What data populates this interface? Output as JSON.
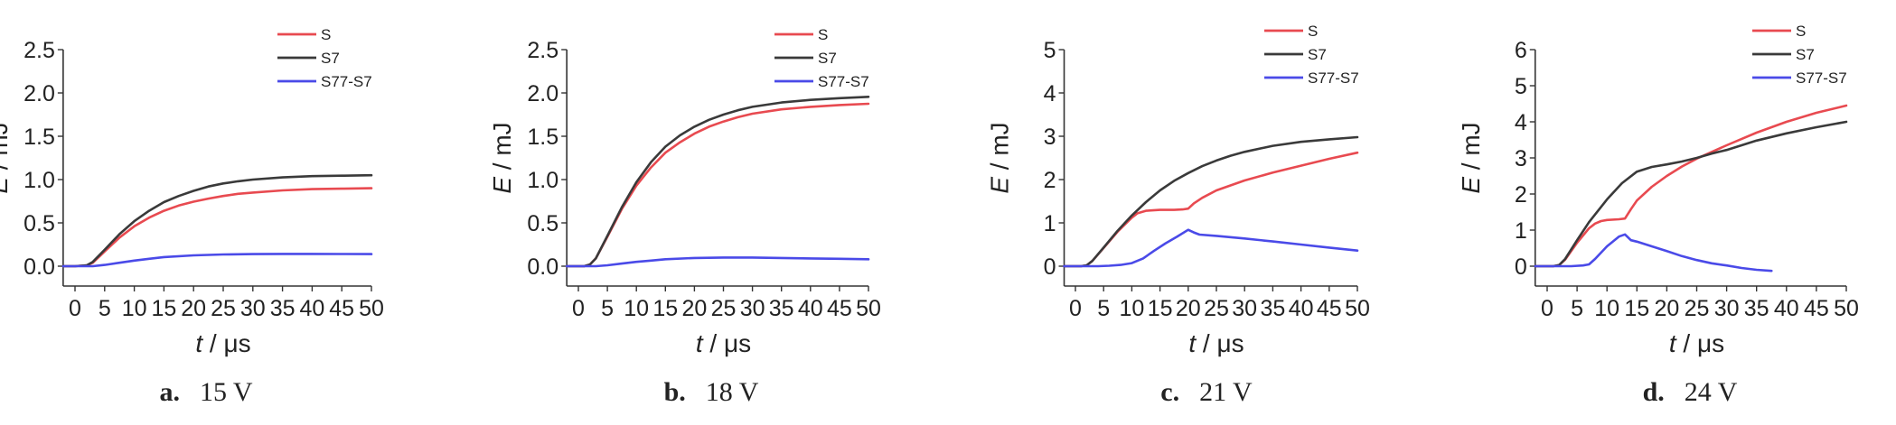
{
  "chart_data": [
    {
      "type": "line",
      "caption_letter": "a.",
      "caption_text": "15 V",
      "xlabel": "t / μs",
      "ylabel": "E / mJ",
      "xlim": [
        0,
        50
      ],
      "ylim": [
        0,
        2.5
      ],
      "xticks": [
        "0",
        "5",
        "10",
        "15",
        "20",
        "25",
        "30",
        "35",
        "40",
        "45",
        "50"
      ],
      "yticks": [
        "0.0",
        "0.5",
        "1.0",
        "1.5",
        "2.0",
        "2.5"
      ],
      "legend_position": "top-right",
      "series": [
        {
          "name": "S",
          "color": "#e84a50",
          "x": [
            -2,
            0,
            2,
            3,
            5,
            7.5,
            10,
            12.5,
            15,
            17.5,
            20,
            22.5,
            25,
            27.5,
            30,
            35,
            40,
            45,
            50
          ],
          "y": [
            0,
            0,
            0.01,
            0.04,
            0.17,
            0.33,
            0.46,
            0.56,
            0.64,
            0.7,
            0.745,
            0.78,
            0.81,
            0.835,
            0.85,
            0.875,
            0.89,
            0.895,
            0.9
          ]
        },
        {
          "name": "S7",
          "color": "#3a3a3a",
          "x": [
            -2,
            0,
            2,
            3,
            5,
            7.5,
            10,
            12.5,
            15,
            17.5,
            20,
            22.5,
            25,
            27.5,
            30,
            35,
            40,
            45,
            50
          ],
          "y": [
            0,
            0,
            0.01,
            0.05,
            0.19,
            0.37,
            0.52,
            0.64,
            0.74,
            0.81,
            0.87,
            0.92,
            0.955,
            0.98,
            1.0,
            1.025,
            1.04,
            1.045,
            1.05
          ]
        },
        {
          "name": "S77-S7",
          "color": "#4a4ae8",
          "x": [
            -2,
            0,
            2,
            3,
            5,
            7.5,
            10,
            12.5,
            15,
            20,
            25,
            30,
            35,
            40,
            45,
            50
          ],
          "y": [
            0,
            0,
            0,
            0,
            0.015,
            0.04,
            0.065,
            0.085,
            0.105,
            0.125,
            0.135,
            0.14,
            0.142,
            0.142,
            0.141,
            0.14
          ]
        }
      ]
    },
    {
      "type": "line",
      "caption_letter": "b.",
      "caption_text": "18 V",
      "xlabel": "t / μs",
      "ylabel": "E / mJ",
      "xlim": [
        0,
        50
      ],
      "ylim": [
        0,
        2.5
      ],
      "xticks": [
        "0",
        "5",
        "10",
        "15",
        "20",
        "25",
        "30",
        "35",
        "40",
        "45",
        "50"
      ],
      "yticks": [
        "0.0",
        "0.5",
        "1.0",
        "1.5",
        "2.0",
        "2.5"
      ],
      "legend_position": "top-right",
      "series": [
        {
          "name": "S",
          "color": "#e84a50",
          "x": [
            -2,
            0,
            1,
            2,
            3,
            5,
            7.5,
            10,
            12.5,
            15,
            17.5,
            20,
            22.5,
            25,
            27.5,
            30,
            35,
            40,
            45,
            50
          ],
          "y": [
            0,
            0,
            0,
            0.02,
            0.09,
            0.34,
            0.66,
            0.93,
            1.14,
            1.31,
            1.43,
            1.53,
            1.61,
            1.67,
            1.72,
            1.76,
            1.81,
            1.84,
            1.86,
            1.875
          ]
        },
        {
          "name": "S7",
          "color": "#3a3a3a",
          "x": [
            -2,
            0,
            1,
            2,
            3,
            5,
            7.5,
            10,
            12.5,
            15,
            17.5,
            20,
            22.5,
            25,
            27.5,
            30,
            35,
            40,
            45,
            50
          ],
          "y": [
            0,
            0,
            0,
            0.02,
            0.09,
            0.35,
            0.68,
            0.97,
            1.2,
            1.38,
            1.51,
            1.61,
            1.69,
            1.75,
            1.8,
            1.84,
            1.89,
            1.92,
            1.94,
            1.955
          ]
        },
        {
          "name": "S77-S7",
          "color": "#4a4ae8",
          "x": [
            -2,
            0,
            2,
            3,
            5,
            7.5,
            10,
            12.5,
            15,
            20,
            25,
            30,
            35,
            40,
            45,
            50
          ],
          "y": [
            0,
            0,
            0,
            0,
            0.01,
            0.03,
            0.05,
            0.065,
            0.08,
            0.095,
            0.1,
            0.1,
            0.095,
            0.09,
            0.085,
            0.08
          ]
        }
      ]
    },
    {
      "type": "line",
      "caption_letter": "c.",
      "caption_text": "21 V",
      "xlabel": "t / μs",
      "ylabel": "E / mJ",
      "xlim": [
        0,
        50
      ],
      "ylim": [
        0,
        5
      ],
      "xticks": [
        "0",
        "5",
        "10",
        "15",
        "20",
        "25",
        "30",
        "35",
        "40",
        "45",
        "50"
      ],
      "yticks": [
        "0",
        "1",
        "2",
        "3",
        "4",
        "5"
      ],
      "legend_position": "top-right",
      "series": [
        {
          "name": "S",
          "color": "#e84a50",
          "x": [
            -2,
            0,
            1,
            2,
            3,
            5,
            7.5,
            10,
            11,
            12.5,
            15,
            17.5,
            19,
            20,
            21,
            22.5,
            25,
            30,
            35,
            40,
            45,
            50
          ],
          "y": [
            0,
            0,
            0,
            0.02,
            0.12,
            0.42,
            0.8,
            1.12,
            1.22,
            1.28,
            1.3,
            1.3,
            1.31,
            1.33,
            1.45,
            1.58,
            1.75,
            1.98,
            2.16,
            2.32,
            2.48,
            2.62
          ]
        },
        {
          "name": "S7",
          "color": "#3a3a3a",
          "x": [
            -2,
            0,
            1,
            2,
            3,
            5,
            7.5,
            10,
            12.5,
            15,
            17.5,
            20,
            22.5,
            25,
            27.5,
            30,
            35,
            40,
            45,
            50
          ],
          "y": [
            0,
            0,
            0,
            0.02,
            0.12,
            0.43,
            0.82,
            1.17,
            1.48,
            1.75,
            1.97,
            2.15,
            2.31,
            2.44,
            2.55,
            2.64,
            2.78,
            2.87,
            2.93,
            2.98
          ]
        },
        {
          "name": "S77-S7",
          "color": "#4a4ae8",
          "x": [
            -2,
            0,
            2,
            4,
            6,
            8,
            10,
            12,
            14,
            16,
            18,
            20,
            21,
            22,
            25,
            30,
            35,
            40,
            45,
            50
          ],
          "y": [
            0,
            0,
            0,
            0,
            0.01,
            0.03,
            0.07,
            0.18,
            0.36,
            0.53,
            0.68,
            0.84,
            0.78,
            0.73,
            0.7,
            0.64,
            0.57,
            0.5,
            0.43,
            0.36
          ]
        }
      ]
    },
    {
      "type": "line",
      "caption_letter": "d.",
      "caption_text": "24 V",
      "xlabel": "t / μs",
      "ylabel": "E / mJ",
      "xlim": [
        0,
        50
      ],
      "ylim": [
        0,
        6
      ],
      "xticks": [
        "0",
        "5",
        "10",
        "15",
        "20",
        "25",
        "30",
        "35",
        "40",
        "45",
        "50"
      ],
      "yticks": [
        "0",
        "1",
        "2",
        "3",
        "4",
        "5",
        "6"
      ],
      "legend_position": "top-right",
      "series": [
        {
          "name": "S",
          "color": "#e84a50",
          "x": [
            -2,
            0,
            1,
            2,
            3,
            5,
            7,
            8,
            9,
            10,
            12,
            13,
            14,
            15,
            17.5,
            20,
            22.5,
            25,
            30,
            35,
            40,
            45,
            50
          ],
          "y": [
            0,
            0,
            0,
            0.03,
            0.18,
            0.65,
            1.05,
            1.18,
            1.25,
            1.28,
            1.3,
            1.32,
            1.58,
            1.82,
            2.2,
            2.5,
            2.76,
            2.98,
            3.35,
            3.7,
            4.0,
            4.25,
            4.45
          ]
        },
        {
          "name": "S7",
          "color": "#3a3a3a",
          "x": [
            -2,
            0,
            1,
            2,
            3,
            5,
            7,
            10,
            12.5,
            15,
            17.5,
            20,
            22.5,
            25,
            27.5,
            30,
            32.5,
            35,
            40,
            45,
            50
          ],
          "y": [
            0,
            0,
            0,
            0.03,
            0.2,
            0.72,
            1.22,
            1.85,
            2.3,
            2.62,
            2.75,
            2.82,
            2.9,
            3.0,
            3.12,
            3.22,
            3.35,
            3.48,
            3.68,
            3.85,
            4.0
          ]
        },
        {
          "name": "S77-S7",
          "color": "#4a4ae8",
          "x": [
            -2,
            0,
            2,
            4,
            6,
            7,
            8,
            10,
            12,
            13,
            14,
            15,
            17.5,
            20,
            22.5,
            25,
            27.5,
            30,
            32.5,
            35,
            37.5
          ],
          "y": [
            0,
            0,
            0,
            0,
            0.02,
            0.05,
            0.2,
            0.55,
            0.82,
            0.88,
            0.72,
            0.68,
            0.55,
            0.42,
            0.28,
            0.17,
            0.08,
            0.02,
            -0.05,
            -0.1,
            -0.13
          ]
        }
      ]
    }
  ]
}
